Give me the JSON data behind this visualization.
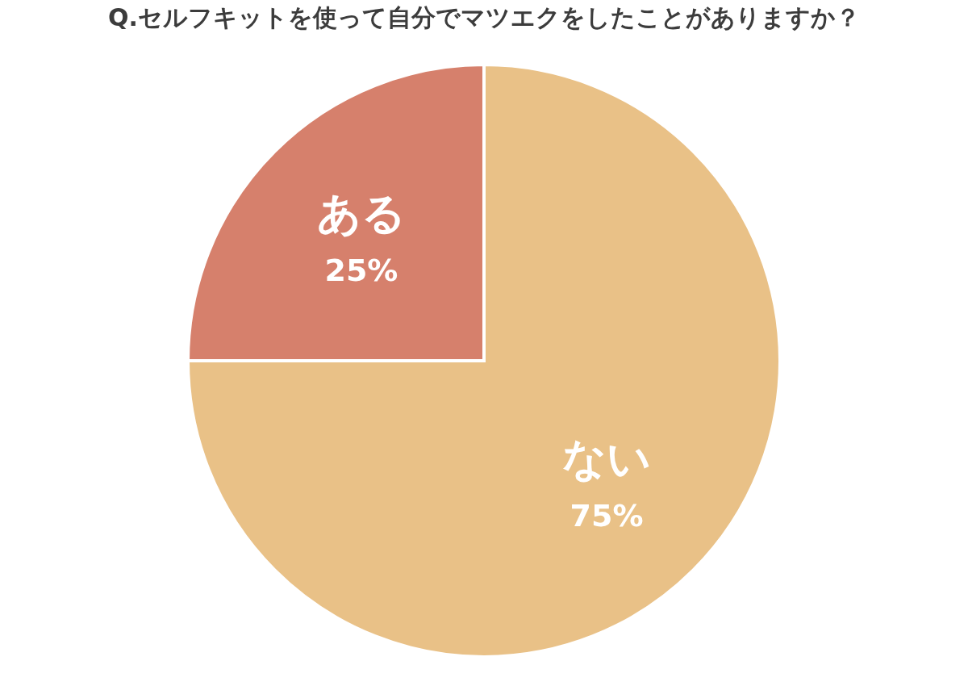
{
  "chart_data": {
    "type": "pie",
    "title": "Q.セルフキットを使って自分でマツエクをしたことがありますか？",
    "categories": [
      "ない",
      "ある"
    ],
    "values": [
      75,
      25
    ],
    "colors": [
      "#e9c187",
      "#d6806c"
    ],
    "value_labels": [
      "75%",
      "25%"
    ],
    "legend": false
  }
}
